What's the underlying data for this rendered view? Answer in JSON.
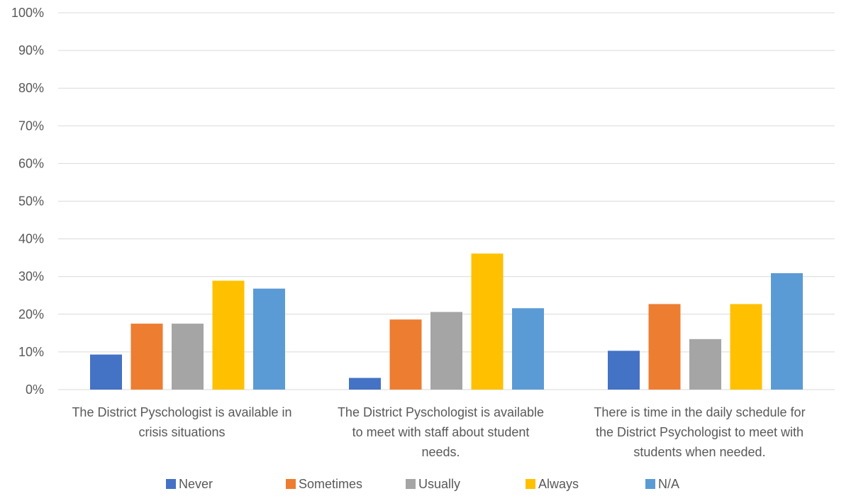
{
  "chart_data": {
    "type": "bar",
    "title": "",
    "xlabel": "",
    "ylabel": "",
    "ylim": [
      0,
      100
    ],
    "y_ticks": [
      "0%",
      "10%",
      "20%",
      "30%",
      "40%",
      "50%",
      "60%",
      "70%",
      "80%",
      "90%",
      "100%"
    ],
    "grid": true,
    "legend_position": "bottom",
    "categories": [
      [
        "The District Pyschologist is available in",
        "crisis situations"
      ],
      [
        "The District Pyschologist is available",
        "to meet with staff about student",
        "needs."
      ],
      [
        "There is time in the daily schedule for",
        "the District Psychologist to meet with",
        "students when needed."
      ]
    ],
    "series": [
      {
        "name": "Never",
        "color": "#4472C4",
        "values": [
          9.3,
          3.1,
          10.3
        ]
      },
      {
        "name": "Sometimes",
        "color": "#ED7D31",
        "values": [
          17.5,
          18.6,
          22.7
        ]
      },
      {
        "name": "Usually",
        "color": "#A5A5A5",
        "values": [
          17.5,
          20.6,
          13.4
        ]
      },
      {
        "name": "Always",
        "color": "#FFC000",
        "values": [
          28.9,
          36.1,
          22.7
        ]
      },
      {
        "name": "N/A",
        "color": "#5B9BD5",
        "values": [
          26.8,
          21.6,
          30.9
        ]
      }
    ]
  }
}
